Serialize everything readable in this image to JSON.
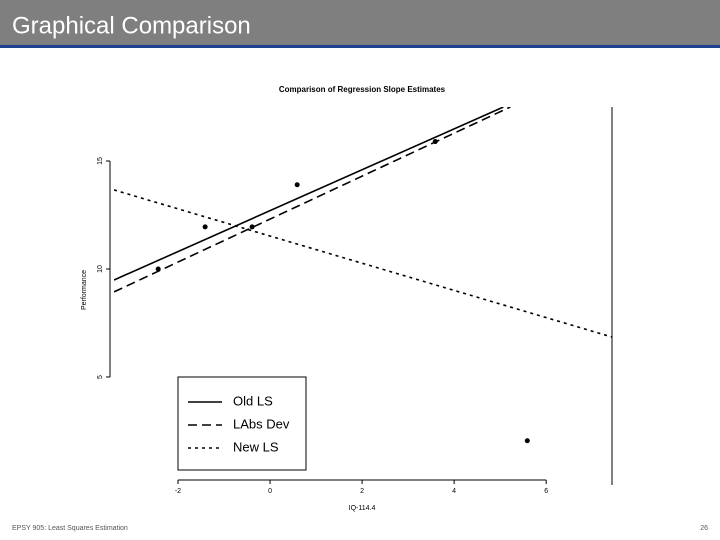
{
  "slide": {
    "title": "Graphical Comparison",
    "footer": "EPSY 905: Least Squares Estimation",
    "page_number": "26"
  },
  "chart_data": {
    "type": "scatter",
    "title": "Comparison of Regression Slope Estimates",
    "x_label": "IQ-114.4",
    "y_label": "Performance",
    "x": [
      -2.43,
      -1.41,
      -0.39,
      0.59,
      3.59,
      5.59
    ],
    "values": [
      10,
      11.95,
      11.95,
      13.9,
      15.9,
      2.05
    ],
    "point_color": "#000000",
    "series": [
      {
        "name": "Old LS",
        "style": "solid",
        "color": "#000000",
        "x": [
          -3.39,
          5.07
        ],
        "values": [
          9.49,
          17.5
        ]
      },
      {
        "name": "LAbs Dev",
        "style": "dashed",
        "color": "#000000",
        "x": [
          -3.39,
          5.22
        ],
        "values": [
          8.94,
          17.5
        ]
      },
      {
        "name": "New LS",
        "style": "dotted",
        "color": "#000000",
        "x": [
          -3.39,
          7.43
        ],
        "values": [
          13.66,
          6.85
        ]
      }
    ],
    "xlim": [
      -3.39,
      7.43
    ],
    "ylim": [
      0,
      17.5
    ],
    "xticks": [
      -2,
      0,
      2,
      4,
      6
    ],
    "yticks": [
      5,
      10,
      15
    ],
    "legend": "bottom-left"
  }
}
